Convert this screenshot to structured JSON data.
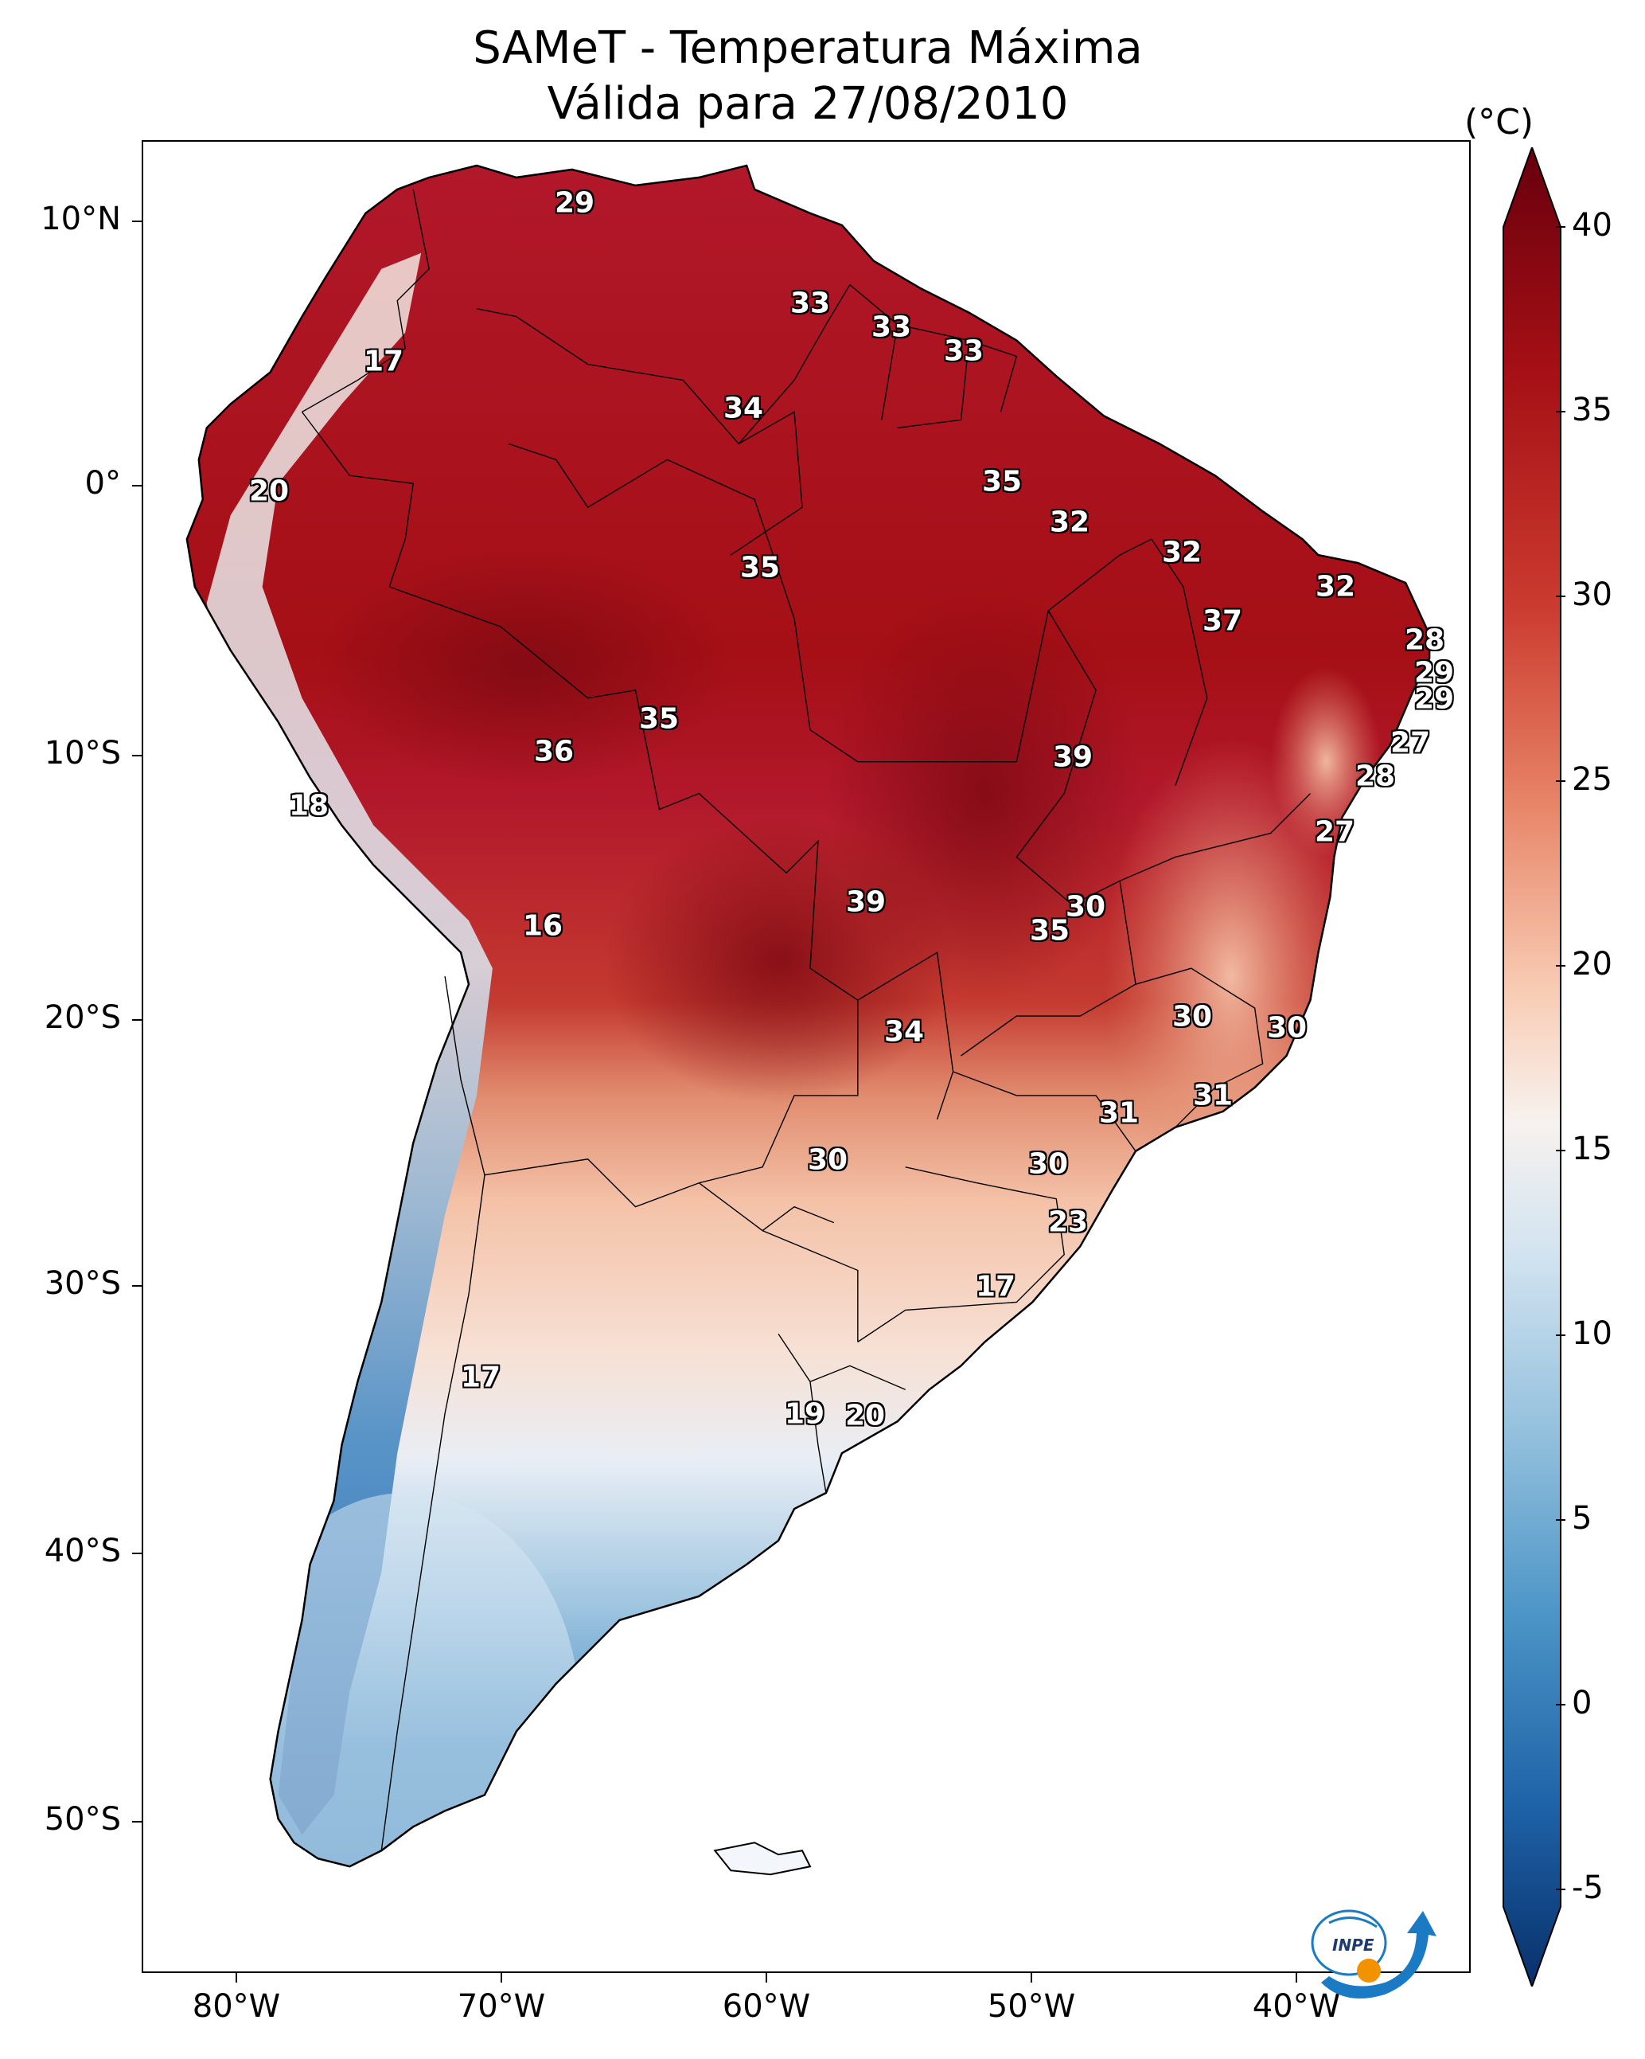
{
  "title_line1": "SAMeT - Temperatura Máxima",
  "title_line2": "Válida para 27/08/2010",
  "lat_labels": [
    "10°N",
    "0°",
    "10°S",
    "20°S",
    "30°S",
    "40°S",
    "50°S"
  ],
  "lon_labels": [
    "80°W",
    "70°W",
    "60°W",
    "50°W",
    "40°W"
  ],
  "colorbar": {
    "unit": "(°C)",
    "ticks": [
      "40",
      "35",
      "30",
      "25",
      "20",
      "15",
      "10",
      "5",
      "0",
      "-5"
    ],
    "range": [
      -5,
      40
    ],
    "colormap": "RdBu_r",
    "colors": {
      "low": "#08306b",
      "mid": "#f7f7f7",
      "high": "#67000d"
    }
  },
  "point_values": [
    "29",
    "33",
    "33",
    "33",
    "17",
    "34",
    "20",
    "35",
    "35",
    "32",
    "32",
    "32",
    "37",
    "28",
    "29",
    "29",
    "35",
    "36",
    "39",
    "27",
    "18",
    "28",
    "27",
    "16",
    "39",
    "30",
    "35",
    "34",
    "30",
    "30",
    "31",
    "31",
    "30",
    "30",
    "23",
    "17",
    "17",
    "19",
    "20"
  ],
  "logo_text": "INPE"
}
